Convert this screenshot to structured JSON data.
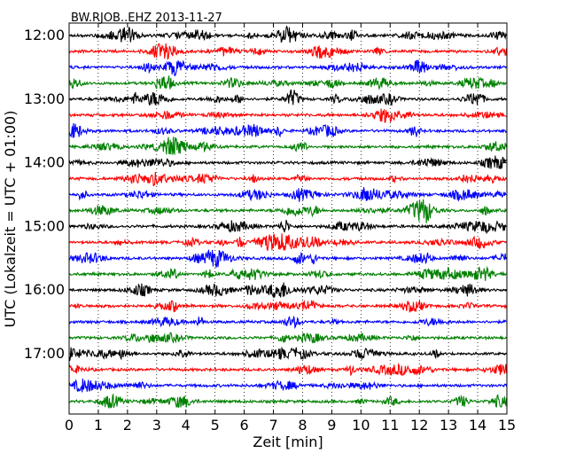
{
  "chart_data": {
    "type": "line",
    "title": "BW.RJOB..EHZ 2013-11-27",
    "xlabel": "Zeit  [min]",
    "ylabel": "UTC (Lokalzeit = UTC + 01:00)",
    "xlim": [
      0,
      15
    ],
    "x_ticks": [
      "0",
      "1",
      "2",
      "3",
      "4",
      "5",
      "6",
      "7",
      "8",
      "9",
      "10",
      "11",
      "12",
      "13",
      "14",
      "15"
    ],
    "y_ticks": [
      "12:00",
      "13:00",
      "14:00",
      "15:00",
      "16:00",
      "17:00"
    ],
    "grid": "vertical dotted lines at each minute",
    "trace_colors": [
      "#000000",
      "#ff0000",
      "#0000ff",
      "#008000"
    ],
    "trace_start_times": [
      "12:00",
      "12:15",
      "12:30",
      "12:45",
      "13:00",
      "13:15",
      "13:30",
      "13:45",
      "14:00",
      "14:15",
      "14:30",
      "14:45",
      "15:00",
      "15:15",
      "15:30",
      "15:45",
      "16:00",
      "16:15",
      "16:30",
      "16:45",
      "17:00",
      "17:15",
      "17:30",
      "17:45"
    ],
    "trace_minutes_per_line": 15
  }
}
